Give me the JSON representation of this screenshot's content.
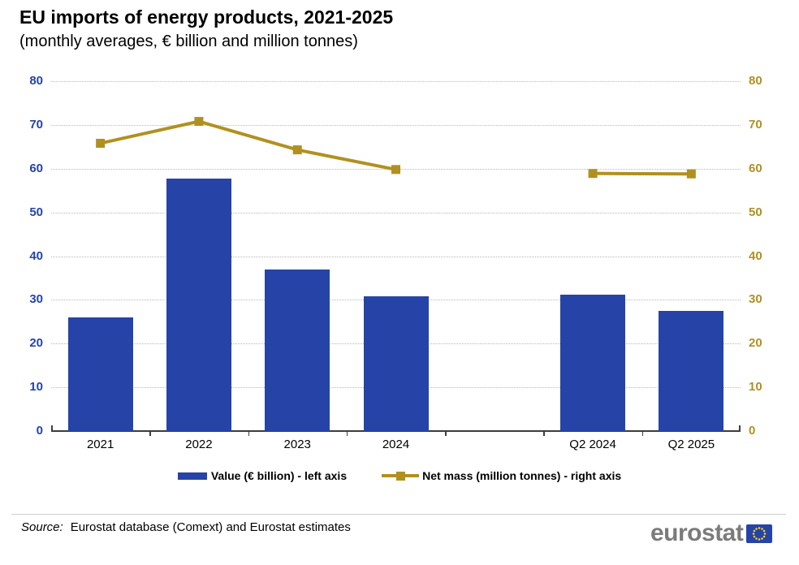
{
  "title": "EU imports of energy products, 2021-2025",
  "subtitle": "(monthly averages, € billion and million tonnes)",
  "chart_data": {
    "type": "bar+line",
    "title": "EU imports of energy products, 2021-2025",
    "subtitle": "(monthly averages, € billion and million tonnes)",
    "categories": [
      "2021",
      "2022",
      "2023",
      "2024",
      "Q2 2024",
      "Q2 2025"
    ],
    "slots": [
      0,
      1,
      2,
      3,
      5,
      6
    ],
    "n_slots": 7,
    "series": [
      {
        "name": "Value (€ billion) - left axis",
        "type": "bar",
        "axis": "left",
        "color": "#2644A7",
        "values": [
          26.0,
          57.7,
          37.0,
          30.9,
          31.2,
          27.4
        ]
      },
      {
        "name": "Net mass (million tonnes) - right axis",
        "type": "line",
        "axis": "right",
        "color": "#B09120",
        "marker": "square",
        "segments": [
          [
            0,
            1,
            2,
            3
          ],
          [
            4,
            5
          ]
        ],
        "values": [
          65.8,
          70.8,
          64.3,
          59.8,
          58.9,
          58.8
        ]
      }
    ],
    "left_axis": {
      "min": 0,
      "max": 80,
      "step": 10,
      "ticks": [
        "0",
        "10",
        "20",
        "30",
        "40",
        "50",
        "60",
        "70",
        "80"
      ],
      "color": "#2644A7"
    },
    "right_axis": {
      "min": 0,
      "max": 80,
      "step": 10,
      "ticks": [
        "0",
        "10",
        "20",
        "30",
        "40",
        "50",
        "60",
        "70",
        "80"
      ],
      "color": "#B09120"
    },
    "grid": true,
    "gridline_style": "dotted",
    "legend_position": "bottom"
  },
  "legend": [
    {
      "label": "Value (€ billion) - left axis",
      "color": "#2644A7"
    },
    {
      "label": "Net mass (million tonnes) - right axis",
      "color": "#B09120"
    }
  ],
  "source": {
    "label": "Source:",
    "text": "Eurostat database (Comext) and Eurostat estimates"
  },
  "logo": {
    "text": "eurostat",
    "flag_color": "#2644A7",
    "star_color": "#FFD617",
    "text_color": "#7b7b7b"
  }
}
